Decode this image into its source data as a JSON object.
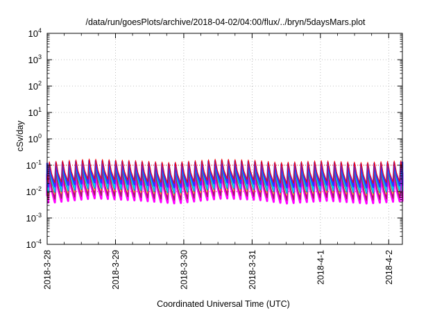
{
  "chart_data": {
    "type": "line",
    "title": "/data/run/goesPlots/archive/2018-04-02/04:00/flux/../bryn/5daysMars.plot",
    "xlabel": "Coordinated Universal Time (UTC)",
    "ylabel": "cSv/day",
    "yscale": "log",
    "ylim": [
      0.0001,
      10000
    ],
    "xlim_days": [
      0,
      5.2
    ],
    "grid": true,
    "legend": "none",
    "x_ticks": [
      {
        "label": "2018-3-28",
        "day": 0
      },
      {
        "label": "2018-3-29",
        "day": 1
      },
      {
        "label": "2018-3-30",
        "day": 2
      },
      {
        "label": "2018-3-31",
        "day": 3
      },
      {
        "label": "2018-4-1",
        "day": 4
      },
      {
        "label": "2018-4-2",
        "day": 5
      }
    ],
    "y_ticks": [
      {
        "base": "10",
        "exp": "-4",
        "value": 0.0001
      },
      {
        "base": "10",
        "exp": "-3",
        "value": 0.001
      },
      {
        "base": "10",
        "exp": "-2",
        "value": 0.01
      },
      {
        "base": "10",
        "exp": "-1",
        "value": 0.1
      },
      {
        "base": "10",
        "exp": "0",
        "value": 1
      },
      {
        "base": "10",
        "exp": "1",
        "value": 10
      },
      {
        "base": "10",
        "exp": "2",
        "value": 100
      },
      {
        "base": "10",
        "exp": "3",
        "value": 1000
      },
      {
        "base": "10",
        "exp": "4",
        "value": 10000
      }
    ],
    "reference_lines": [
      {
        "value": 0.1,
        "color": "#ff0000",
        "style": "dotted"
      },
      {
        "value": 0.01,
        "color": "#ff0000",
        "style": "dotted"
      }
    ],
    "sawtooth": {
      "cycles_per_day": 10.3,
      "first_peak_day": 0.02,
      "modulation": [
        {
          "day": 0.0,
          "factor": 0.9
        },
        {
          "day": 0.6,
          "factor": 1.15
        },
        {
          "day": 1.3,
          "factor": 1.0
        },
        {
          "day": 1.8,
          "factor": 0.85
        },
        {
          "day": 2.5,
          "factor": 1.15
        },
        {
          "day": 3.0,
          "factor": 1.05
        },
        {
          "day": 3.4,
          "factor": 0.85
        },
        {
          "day": 4.0,
          "factor": 1.0
        },
        {
          "day": 4.6,
          "factor": 0.85
        },
        {
          "day": 5.2,
          "factor": 1.0
        }
      ]
    },
    "series": [
      {
        "color": "#ff00ff",
        "peak": 0.05,
        "trough": 0.0045,
        "width": 3
      },
      {
        "color": "#a0205a",
        "peak": 0.06,
        "trough": 0.006,
        "width": 1.5
      },
      {
        "color": "#ff8800",
        "peak": 0.085,
        "trough": 0.009,
        "width": 1
      },
      {
        "color": "#00aaaa",
        "peak": 0.1,
        "trough": 0.011,
        "width": 2
      },
      {
        "color": "#00ccff",
        "peak": 0.11,
        "trough": 0.012,
        "width": 1.5
      },
      {
        "color": "#3333ff",
        "peak": 0.13,
        "trough": 0.018,
        "width": 2.5
      },
      {
        "color": "#ff0000",
        "peak": 0.15,
        "trough": 0.025,
        "width": 1
      }
    ]
  }
}
